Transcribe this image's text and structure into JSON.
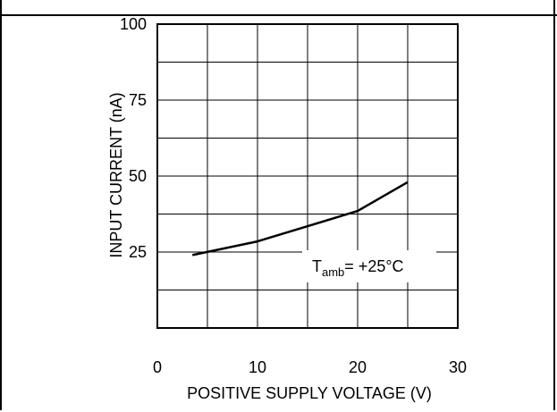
{
  "chart_data": {
    "type": "line",
    "title": "",
    "xlabel": "POSITIVE SUPPLY VOLTAGE (V)",
    "ylabel": "INPUT CURRENT (nA)",
    "xlim": [
      0,
      30
    ],
    "ylim": [
      0,
      100
    ],
    "x_ticks": [
      0,
      10,
      20,
      30
    ],
    "y_ticks": [
      25,
      50,
      75,
      100
    ],
    "grid": true,
    "series": [
      {
        "x": [
          3.5,
          10,
          20,
          25
        ],
        "y": [
          24,
          28.5,
          38.5,
          48
        ]
      }
    ],
    "annotation": {
      "base": "T",
      "sub": "amb",
      "rest": "= +25°C"
    }
  }
}
